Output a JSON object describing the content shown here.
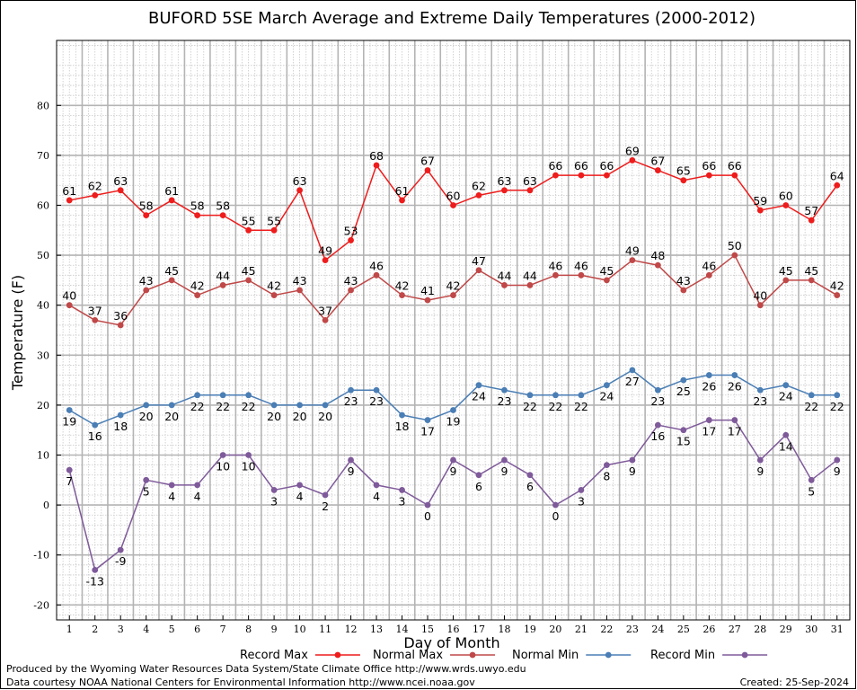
{
  "chart_data": {
    "type": "line",
    "title": "BUFORD 5SE March Average and Extreme Daily Temperatures (2000-2012)",
    "xlabel": "Day of Month",
    "ylabel": "Temperature (F)",
    "ylim": [
      -23,
      93
    ],
    "yticks": [
      -20,
      -10,
      0,
      10,
      20,
      30,
      40,
      50,
      60,
      70,
      80
    ],
    "grid": true,
    "legend_position": "bottom",
    "x": [
      1,
      2,
      3,
      4,
      5,
      6,
      7,
      8,
      9,
      10,
      11,
      12,
      13,
      14,
      15,
      16,
      17,
      18,
      19,
      20,
      21,
      22,
      23,
      24,
      25,
      26,
      27,
      28,
      29,
      30,
      31
    ],
    "series": [
      {
        "name": "Record Max",
        "color": "#ee1c1c",
        "label_position": "above",
        "values": [
          61,
          62,
          63,
          58,
          61,
          58,
          58,
          55,
          55,
          63,
          49,
          53,
          68,
          61,
          67,
          60,
          62,
          63,
          63,
          66,
          66,
          66,
          69,
          67,
          65,
          66,
          66,
          59,
          60,
          57,
          64
        ]
      },
      {
        "name": "Normal Max",
        "color": "#c04848",
        "label_position": "above",
        "values": [
          40,
          37,
          36,
          43,
          45,
          42,
          44,
          45,
          42,
          43,
          37,
          43,
          46,
          42,
          41,
          42,
          47,
          44,
          44,
          46,
          46,
          45,
          49,
          48,
          43,
          46,
          50,
          40,
          45,
          45,
          42
        ]
      },
      {
        "name": "Normal Min",
        "color": "#4a7eb5",
        "label_position": "below",
        "values": [
          19,
          16,
          18,
          20,
          20,
          22,
          22,
          22,
          20,
          20,
          20,
          23,
          23,
          18,
          17,
          19,
          24,
          23,
          22,
          22,
          22,
          24,
          27,
          23,
          25,
          26,
          26,
          23,
          24,
          22,
          22
        ]
      },
      {
        "name": "Record Min",
        "color": "#7f5a9a",
        "label_position": "below",
        "values": [
          7,
          -13,
          -9,
          5,
          4,
          4,
          10,
          10,
          3,
          4,
          2,
          9,
          4,
          3,
          0,
          9,
          6,
          9,
          6,
          0,
          3,
          8,
          9,
          16,
          15,
          17,
          17,
          9,
          14,
          5,
          9
        ]
      }
    ]
  },
  "footer": {
    "line1": "Produced by the Wyoming Water Resources Data System/State Climate Office http://www.wrds.uwyo.edu",
    "line2": "Data courtesy NOAA National Centers for Environmental Information http://www.ncei.noaa.gov",
    "created": "Created:  25-Sep-2024"
  }
}
